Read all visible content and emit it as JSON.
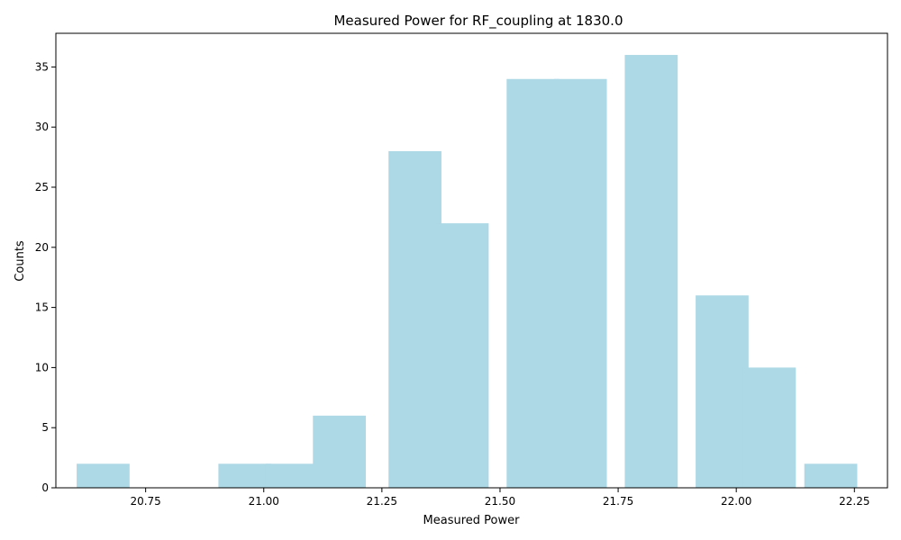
{
  "chart_data": {
    "type": "bar",
    "title": "Measured Power for RF_coupling at 1830.0",
    "xlabel": "Measured Power",
    "ylabel": "Counts",
    "bar_color": "#add8e6",
    "x": [
      20.66,
      20.8,
      20.96,
      21.06,
      21.16,
      21.32,
      21.42,
      21.57,
      21.67,
      21.82,
      21.97,
      22.07,
      22.2
    ],
    "values": [
      2,
      0,
      2,
      2,
      6,
      28,
      22,
      34,
      34,
      36,
      16,
      10,
      2
    ],
    "bin_width": 0.14,
    "xlim": [
      20.56,
      22.32
    ],
    "ylim": [
      0,
      37.8
    ],
    "xticks": [
      20.75,
      21.0,
      21.25,
      21.5,
      21.75,
      22.0,
      22.25
    ],
    "xtick_labels": [
      "20.75",
      "21.00",
      "21.25",
      "21.50",
      "21.75",
      "22.00",
      "22.25"
    ],
    "yticks": [
      0,
      5,
      10,
      15,
      20,
      25,
      30,
      35
    ],
    "ytick_labels": [
      "0",
      "5",
      "10",
      "15",
      "20",
      "25",
      "30",
      "35"
    ],
    "grid": false,
    "legend": "none"
  }
}
